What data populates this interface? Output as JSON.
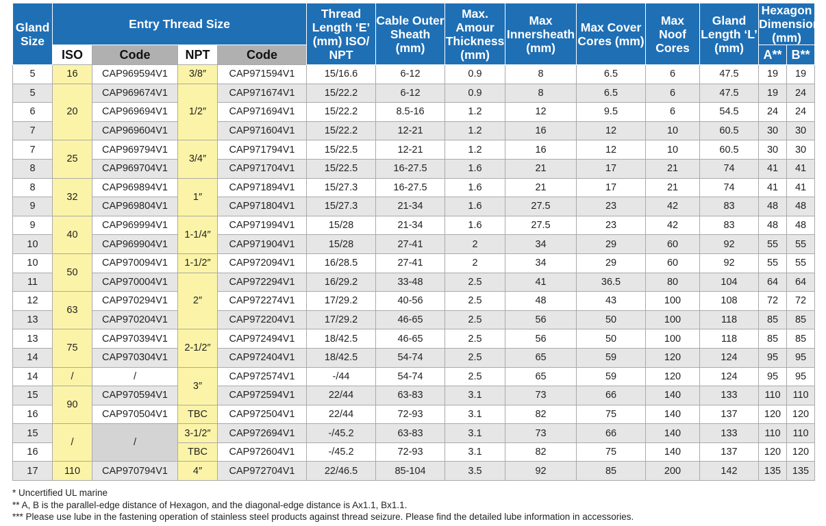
{
  "headers": {
    "gland_size": "Gland Size",
    "entry_thread_size": "Entry Thread Size",
    "thread_length": "Thread Length ‘E’ (mm) ISO/ NPT",
    "cable_outer_sheath": "Cable Outer Sheath (mm)",
    "max_amour_thickness": "Max. Amour Thickness (mm)",
    "max_innersheath": "Max Innersheath (mm)",
    "max_cover_cores": "Max Cover Cores (mm)",
    "max_noof_cores": "Max Noof Cores",
    "gland_length": "Gland Length ‘L’ (mm)",
    "hexagon_dimension": "Hexagon Dimension (mm)",
    "iso": "ISO",
    "code_iso": "Code",
    "npt": "NPT",
    "code_npt": "Code",
    "hex_a": "A**",
    "hex_b": "B**"
  },
  "iso_groups": [
    "16",
    "20",
    "25",
    "32",
    "40",
    "50",
    "63",
    "75",
    "/",
    "90",
    "/",
    "110"
  ],
  "npt_groups": [
    "3/8″",
    "1/2″",
    "3/4″",
    "1″",
    "1-1/4″",
    "1-1/2″",
    "2″",
    "2-1/2″",
    "3″",
    "TBC",
    "3-1/2″",
    "TBC",
    "4″"
  ],
  "rows": [
    {
      "gland": "5",
      "iso_code": "CAP969594V1",
      "npt_code": "CAP971594V1",
      "thread": "15/16.6",
      "sheath": "6-12",
      "amour": "0.9",
      "inner": "8",
      "cover": "6.5",
      "cores": "6",
      "length": "47.5",
      "a": "19",
      "b": "19"
    },
    {
      "gland": "5",
      "iso_code": "CAP969674V1",
      "npt_code": "CAP971674V1",
      "thread": "15/22.2",
      "sheath": "6-12",
      "amour": "0.9",
      "inner": "8",
      "cover": "6.5",
      "cores": "6",
      "length": "47.5",
      "a": "19",
      "b": "24"
    },
    {
      "gland": "6",
      "iso_code": "CAP969694V1",
      "npt_code": "CAP971694V1",
      "thread": "15/22.2",
      "sheath": "8.5-16",
      "amour": "1.2",
      "inner": "12",
      "cover": "9.5",
      "cores": "6",
      "length": "54.5",
      "a": "24",
      "b": "24"
    },
    {
      "gland": "7",
      "iso_code": "CAP969604V1",
      "npt_code": "CAP971604V1",
      "thread": "15/22.2",
      "sheath": "12-21",
      "amour": "1.2",
      "inner": "16",
      "cover": "12",
      "cores": "10",
      "length": "60.5",
      "a": "30",
      "b": "30"
    },
    {
      "gland": "7",
      "iso_code": "CAP969794V1",
      "npt_code": "CAP971794V1",
      "thread": "15/22.5",
      "sheath": "12-21",
      "amour": "1.2",
      "inner": "16",
      "cover": "12",
      "cores": "10",
      "length": "60.5",
      "a": "30",
      "b": "30"
    },
    {
      "gland": "8",
      "iso_code": "CAP969704V1",
      "npt_code": "CAP971704V1",
      "thread": "15/22.5",
      "sheath": "16-27.5",
      "amour": "1.6",
      "inner": "21",
      "cover": "17",
      "cores": "21",
      "length": "74",
      "a": "41",
      "b": "41"
    },
    {
      "gland": "8",
      "iso_code": "CAP969894V1",
      "npt_code": "CAP971894V1",
      "thread": "15/27.3",
      "sheath": "16-27.5",
      "amour": "1.6",
      "inner": "21",
      "cover": "17",
      "cores": "21",
      "length": "74",
      "a": "41",
      "b": "41"
    },
    {
      "gland": "9",
      "iso_code": "CAP969804V1",
      "npt_code": "CAP971804V1",
      "thread": "15/27.3",
      "sheath": "21-34",
      "amour": "1.6",
      "inner": "27.5",
      "cover": "23",
      "cores": "42",
      "length": "83",
      "a": "48",
      "b": "48"
    },
    {
      "gland": "9",
      "iso_code": "CAP969994V1",
      "npt_code": "CAP971994V1",
      "thread": "15/28",
      "sheath": "21-34",
      "amour": "1.6",
      "inner": "27.5",
      "cover": "23",
      "cores": "42",
      "length": "83",
      "a": "48",
      "b": "48"
    },
    {
      "gland": "10",
      "iso_code": "CAP969904V1",
      "npt_code": "CAP971904V1",
      "thread": "15/28",
      "sheath": "27-41",
      "amour": "2",
      "inner": "34",
      "cover": "29",
      "cores": "60",
      "length": "92",
      "a": "55",
      "b": "55"
    },
    {
      "gland": "10",
      "iso_code": "CAP970094V1",
      "npt_code": "CAP972094V1",
      "thread": "16/28.5",
      "sheath": "27-41",
      "amour": "2",
      "inner": "34",
      "cover": "29",
      "cores": "60",
      "length": "92",
      "a": "55",
      "b": "55"
    },
    {
      "gland": "11",
      "iso_code": "CAP970004V1",
      "npt_code": "CAP972294V1",
      "thread": "16/29.2",
      "sheath": "33-48",
      "amour": "2.5",
      "inner": "41",
      "cover": "36.5",
      "cores": "80",
      "length": "104",
      "a": "64",
      "b": "64"
    },
    {
      "gland": "12",
      "iso_code": "CAP970294V1",
      "npt_code": "CAP972274V1",
      "thread": "17/29.2",
      "sheath": "40-56",
      "amour": "2.5",
      "inner": "48",
      "cover": "43",
      "cores": "100",
      "length": "108",
      "a": "72",
      "b": "72"
    },
    {
      "gland": "13",
      "iso_code": "CAP970204V1",
      "npt_code": "CAP972204V1",
      "thread": "17/29.2",
      "sheath": "46-65",
      "amour": "2.5",
      "inner": "56",
      "cover": "50",
      "cores": "100",
      "length": "118",
      "a": "85",
      "b": "85"
    },
    {
      "gland": "13",
      "iso_code": "CAP970394V1",
      "npt_code": "CAP972494V1",
      "thread": "18/42.5",
      "sheath": "46-65",
      "amour": "2.5",
      "inner": "56",
      "cover": "50",
      "cores": "100",
      "length": "118",
      "a": "85",
      "b": "85"
    },
    {
      "gland": "14",
      "iso_code": "CAP970304V1",
      "npt_code": "CAP972404V1",
      "thread": "18/42.5",
      "sheath": "54-74",
      "amour": "2.5",
      "inner": "65",
      "cover": "59",
      "cores": "120",
      "length": "124",
      "a": "95",
      "b": "95"
    },
    {
      "gland": "14",
      "iso_code": "/",
      "npt_code": "CAP972574V1",
      "thread": "-/44",
      "sheath": "54-74",
      "amour": "2.5",
      "inner": "65",
      "cover": "59",
      "cores": "120",
      "length": "124",
      "a": "95",
      "b": "95"
    },
    {
      "gland": "15",
      "iso_code": "CAP970594V1",
      "npt_code": "CAP972594V1",
      "thread": "22/44",
      "sheath": "63-83",
      "amour": "3.1",
      "inner": "73",
      "cover": "66",
      "cores": "140",
      "length": "133",
      "a": "110",
      "b": "110"
    },
    {
      "gland": "16",
      "iso_code": "CAP970504V1",
      "npt_code": "CAP972504V1",
      "thread": "22/44",
      "sheath": "72-93",
      "amour": "3.1",
      "inner": "82",
      "cover": "75",
      "cores": "140",
      "length": "137",
      "a": "120",
      "b": "120"
    },
    {
      "gland": "15",
      "iso_code": "/",
      "npt_code": "CAP972694V1",
      "thread": "-/45.2",
      "sheath": "63-83",
      "amour": "3.1",
      "inner": "73",
      "cover": "66",
      "cores": "140",
      "length": "133",
      "a": "110",
      "b": "110"
    },
    {
      "gland": "16",
      "iso_code": "",
      "npt_code": "CAP972604V1",
      "thread": "-/45.2",
      "sheath": "72-93",
      "amour": "3.1",
      "inner": "82",
      "cover": "75",
      "cores": "140",
      "length": "137",
      "a": "120",
      "b": "120"
    },
    {
      "gland": "17",
      "iso_code": "CAP970794V1",
      "npt_code": "CAP972704V1",
      "thread": "22/46.5",
      "sheath": "85-104",
      "amour": "3.5",
      "inner": "92",
      "cover": "85",
      "cores": "200",
      "length": "142",
      "a": "135",
      "b": "135"
    }
  ],
  "footnotes": [
    "* Uncertified UL marine",
    "** A, B is the parallel-edge distance of Hexagon, and the diagonal-edge distance is Ax1.1, Bx1.1.",
    "*** Please use lube in the fastening operation of stainless steel products against thread seizure. Please find the detailed lube information in accessories."
  ]
}
